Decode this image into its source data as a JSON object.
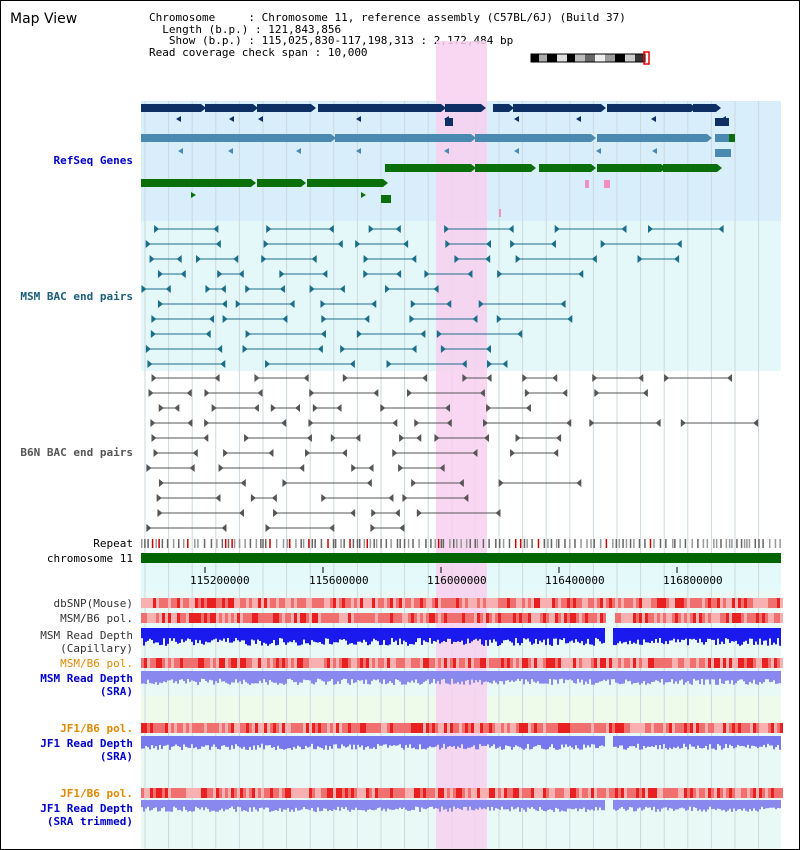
{
  "header": {
    "title": "Map View",
    "chromosome_label": "Chromosome",
    "chromosome_value": ": Chromosome 11, reference assembly (C57BL/6J) (Build 37)",
    "length_label": "Length (b.p.)",
    "length_value": ": 121,843,856",
    "show_label": "Show (b.p.)",
    "show_value": ": 115,025,830-117,198,313 : 2,172,484 bp",
    "coverage_label": "Read coverage check span",
    "coverage_value": ": 10,000"
  },
  "tracks": {
    "refseq": "RefSeq Genes",
    "msm_bac": "MSM BAC end pairs",
    "b6n_bac": "B6N BAC end pairs",
    "repeat": "Repeat",
    "chromosome": "chromosome 11",
    "dbsnp": "dbSNP(Mouse)",
    "msm_b6_pol_1": "MSM/B6 pol.",
    "msm_depth_cap_1": "MSM Read Depth",
    "msm_depth_cap_2": "(Capillary)",
    "msm_b6_pol_2": "MSM/B6 pol.",
    "msm_depth_sra_1": "MSM Read Depth",
    "msm_depth_sra_2": "(SRA)",
    "jf1_b6_pol_1": "JF1/B6 pol.",
    "jf1_depth_sra_1": "JF1 Read Depth",
    "jf1_depth_sra_2": "(SRA)",
    "jf1_b6_pol_2": "JF1/B6 pol.",
    "jf1_depth_trim_1": "JF1 Read Depth",
    "jf1_depth_trim_2": "(SRA trimmed)"
  },
  "axis": {
    "ticks": [
      "115200000",
      "115600000",
      "116000000",
      "116400000",
      "116800000"
    ]
  },
  "colors": {
    "refseq_dark": "#0d2f64",
    "refseq_mid": "#4a8ab0",
    "refseq_green": "#0a6e0a",
    "msm_bac": "#1a6e8a",
    "b6n_bac": "#555555",
    "chromosome": "#006400",
    "label_blue": "#0000cc",
    "label_dark": "#333333",
    "label_orange": "#e08a00",
    "label_teal": "#1a5e7a",
    "highlight": "#f8d0f0"
  }
}
